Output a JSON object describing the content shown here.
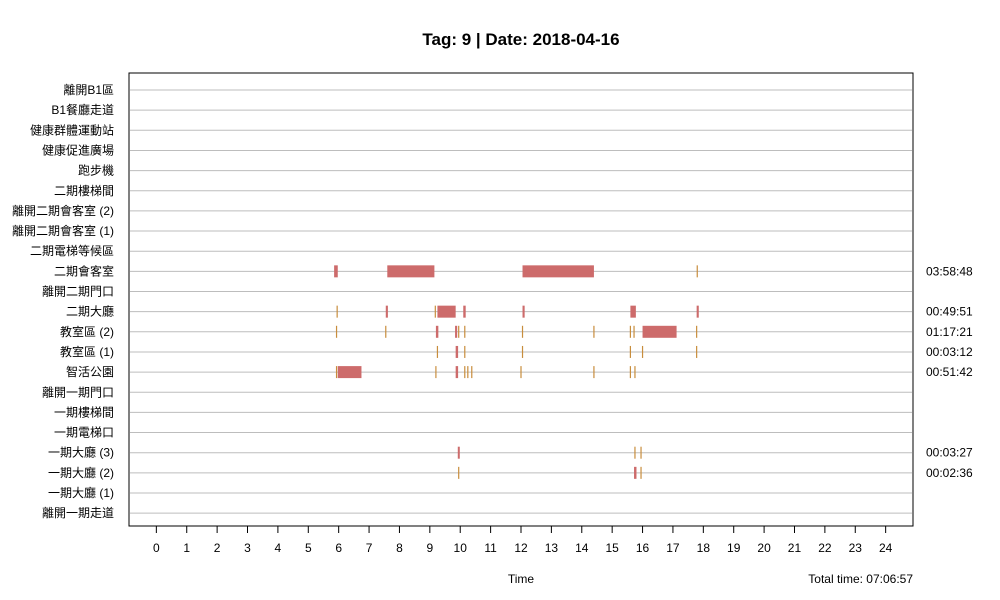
{
  "chart_data": {
    "type": "timeline",
    "title": "Tag: 9 | Date: 2018-04-16",
    "xlabel": "Time",
    "total_time": "Total time: 07:06:57",
    "xlim": [
      -0.9,
      24.9
    ],
    "x_ticks": [
      0,
      1,
      2,
      3,
      4,
      5,
      6,
      7,
      8,
      9,
      10,
      11,
      12,
      13,
      14,
      15,
      16,
      17,
      18,
      19,
      20,
      21,
      22,
      23,
      24
    ],
    "grid": true,
    "colors": {
      "block": "#cd6b6b",
      "tick": "#c88d3c",
      "grid": "#bdbdbd"
    },
    "rows": [
      {
        "label": "離開B1區",
        "total": "",
        "blocks": [],
        "ticks": []
      },
      {
        "label": "B1餐廳走道",
        "total": "",
        "blocks": [],
        "ticks": []
      },
      {
        "label": "健康群體運動站",
        "total": "",
        "blocks": [],
        "ticks": []
      },
      {
        "label": "健康促進廣場",
        "total": "",
        "blocks": [],
        "ticks": []
      },
      {
        "label": "跑步機",
        "total": "",
        "blocks": [],
        "ticks": []
      },
      {
        "label": "二期樓梯間",
        "total": "",
        "blocks": [],
        "ticks": []
      },
      {
        "label": "離開二期會客室 (2)",
        "total": "",
        "blocks": [],
        "ticks": []
      },
      {
        "label": "離開二期會客室 (1)",
        "total": "",
        "blocks": [],
        "ticks": []
      },
      {
        "label": "二期電梯等候區",
        "total": "",
        "blocks": [],
        "ticks": []
      },
      {
        "label": "二期會客室",
        "total": "03:58:48",
        "blocks": [
          [
            5.85,
            5.97
          ],
          [
            7.6,
            9.15
          ],
          [
            12.05,
            14.4
          ]
        ],
        "ticks": [
          17.8
        ]
      },
      {
        "label": "離開二期門口",
        "total": "",
        "blocks": [],
        "ticks": []
      },
      {
        "label": "二期大廳",
        "total": "00:49:51",
        "blocks": [
          [
            7.55,
            7.62
          ],
          [
            9.25,
            9.85
          ],
          [
            10.1,
            10.18
          ],
          [
            12.05,
            12.12
          ],
          [
            15.6,
            15.78
          ],
          [
            17.78,
            17.85
          ]
        ],
        "ticks": [
          5.95,
          9.18
        ]
      },
      {
        "label": "教室區 (2)",
        "total": "01:17:21",
        "blocks": [
          [
            9.2,
            9.28
          ],
          [
            9.83,
            9.9
          ],
          [
            16.0,
            17.12
          ]
        ],
        "ticks": [
          5.93,
          7.55,
          9.95,
          10.15,
          12.05,
          14.4,
          15.6,
          15.72,
          17.78
        ]
      },
      {
        "label": "教室區 (1)",
        "total": "00:03:12",
        "blocks": [
          [
            9.85,
            9.93
          ]
        ],
        "ticks": [
          9.25,
          10.15,
          12.05,
          15.6,
          16.0,
          17.78
        ]
      },
      {
        "label": "智活公園",
        "total": "00:51:42",
        "blocks": [
          [
            5.97,
            6.75
          ],
          [
            9.85,
            9.93
          ]
        ],
        "ticks": [
          5.93,
          9.2,
          10.15,
          10.25,
          10.38,
          12.0,
          14.4,
          15.6,
          15.75
        ]
      },
      {
        "label": "離開一期門口",
        "total": "",
        "blocks": [],
        "ticks": []
      },
      {
        "label": "一期樓梯間",
        "total": "",
        "blocks": [],
        "ticks": []
      },
      {
        "label": "一期電梯口",
        "total": "",
        "blocks": [],
        "ticks": []
      },
      {
        "label": "一期大廳 (3)",
        "total": "00:03:27",
        "blocks": [
          [
            9.92,
            9.98
          ]
        ],
        "ticks": [
          15.75,
          15.95
        ]
      },
      {
        "label": "一期大廳 (2)",
        "total": "00:02:36",
        "blocks": [
          [
            15.72,
            15.8
          ]
        ],
        "ticks": [
          9.95,
          15.95
        ]
      },
      {
        "label": "一期大廳 (1)",
        "total": "",
        "blocks": [],
        "ticks": []
      },
      {
        "label": "離開一期走道",
        "total": "",
        "blocks": [],
        "ticks": []
      }
    ]
  }
}
